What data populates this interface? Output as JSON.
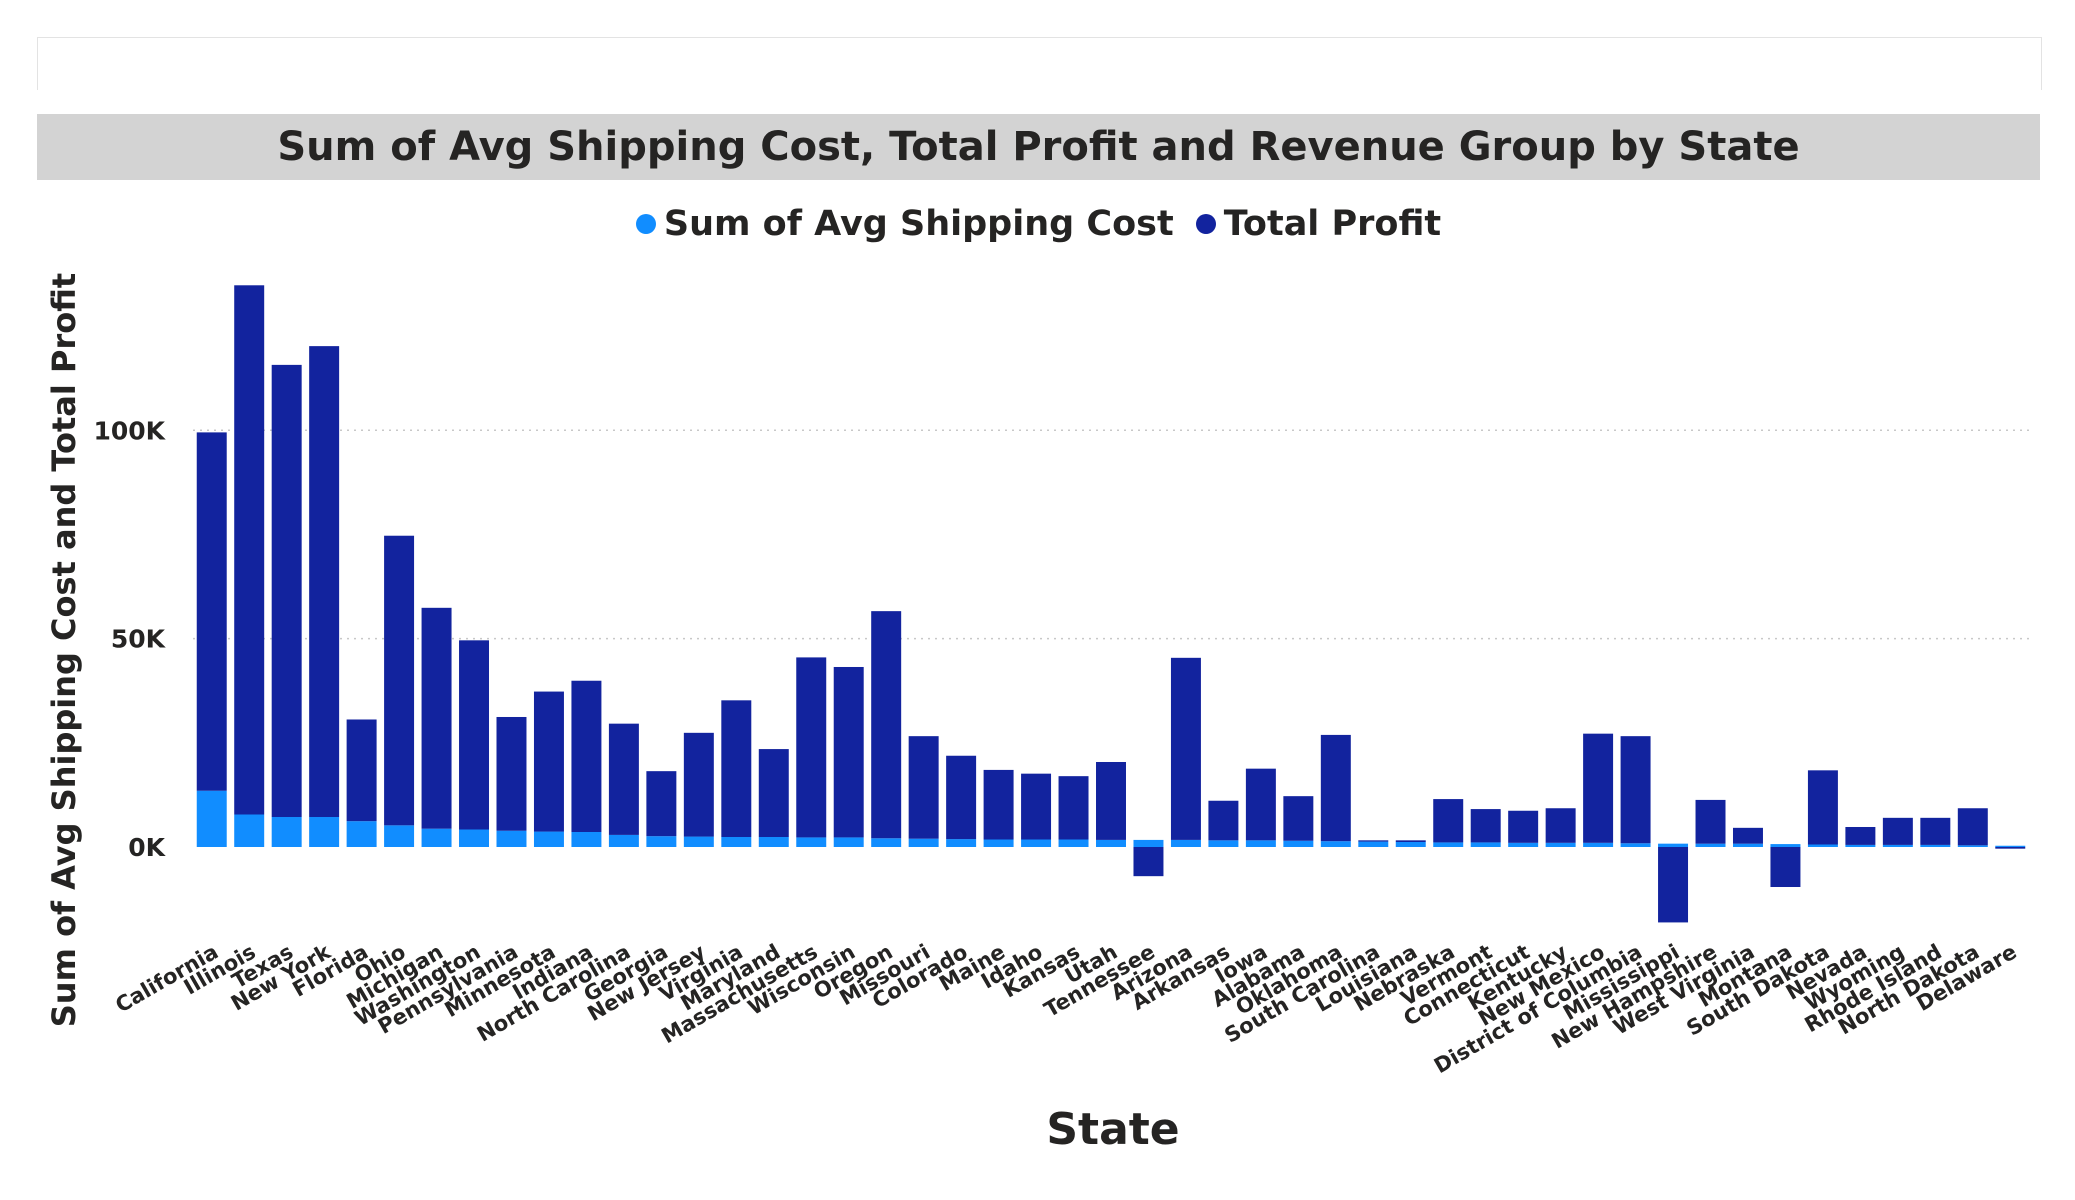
{
  "chart_data": {
    "type": "bar",
    "stacked": true,
    "title": "Sum of Avg Shipping Cost, Total Profit and Revenue Group by State",
    "xlabel": "State",
    "ylabel": "Sum of Avg Shipping Cost and Total Profit",
    "ylim": [
      -23000,
      138000
    ],
    "yticks": [
      0,
      50000,
      100000
    ],
    "ytick_labels": [
      "0K",
      "50K",
      "100K"
    ],
    "grid": true,
    "legend_position": "top",
    "categories": [
      "California",
      "Illinois",
      "Texas",
      "New York",
      "Florida",
      "Ohio",
      "Michigan",
      "Washington",
      "Pennsylvania",
      "Minnesota",
      "Indiana",
      "North Carolina",
      "Georgia",
      "New Jersey",
      "Virginia",
      "Maryland",
      "Massachusetts",
      "Wisconsin",
      "Oregon",
      "Missouri",
      "Colorado",
      "Maine",
      "Idaho",
      "Kansas",
      "Utah",
      "Tennessee",
      "Arizona",
      "Arkansas",
      "Iowa",
      "Alabama",
      "Oklahoma",
      "South Carolina",
      "Louisiana",
      "Nebraska",
      "Vermont",
      "Connecticut",
      "Kentucky",
      "New Mexico",
      "District of Columbia",
      "Mississippi",
      "New Hampshire",
      "West Virginia",
      "Montana",
      "South Dakota",
      "Nevada",
      "Wyoming",
      "Rhode Island",
      "North Dakota",
      "Delaware"
    ],
    "series": [
      {
        "name": "Sum of Avg Shipping Cost",
        "color": "#118DFF",
        "values": [
          13500,
          7800,
          7200,
          7200,
          6200,
          5200,
          4400,
          4200,
          3900,
          3700,
          3600,
          2900,
          2600,
          2500,
          2400,
          2400,
          2300,
          2300,
          2100,
          2000,
          1900,
          1800,
          1800,
          1800,
          1700,
          1700,
          1700,
          1600,
          1600,
          1500,
          1400,
          1300,
          1200,
          1100,
          1100,
          1000,
          1000,
          1000,
          900,
          800,
          800,
          800,
          700,
          600,
          500,
          500,
          500,
          400,
          300
        ]
      },
      {
        "name": "Total Profit",
        "color": "#12239E",
        "values": [
          86000,
          127000,
          108500,
          113000,
          24400,
          69500,
          53000,
          45400,
          27300,
          33600,
          36300,
          26700,
          15600,
          24900,
          32800,
          21100,
          43200,
          40900,
          54500,
          24600,
          20000,
          16700,
          15800,
          15200,
          18700,
          -7000,
          43700,
          9500,
          17200,
          10700,
          25500,
          300,
          400,
          10400,
          8000,
          7700,
          8300,
          26200,
          25700,
          -18100,
          10500,
          3800,
          -9600,
          17800,
          4300,
          6500,
          6500,
          8900,
          -400
        ]
      }
    ]
  }
}
